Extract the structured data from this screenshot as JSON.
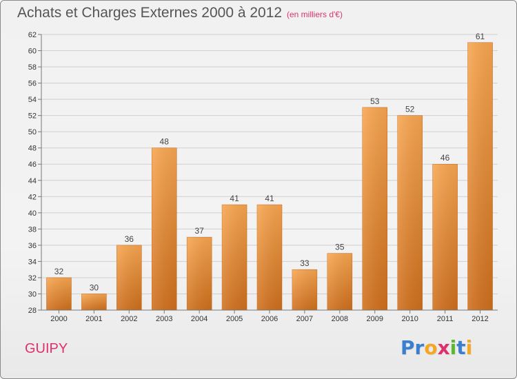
{
  "header": {
    "title": "Achats et Charges Externes 2000 à 2012",
    "subtitle": "(en milliers d'€)"
  },
  "footer": {
    "commune": "GUIPY",
    "logo_letters": [
      {
        "ch": "P",
        "color": "#3a7fd0"
      },
      {
        "ch": "r",
        "color": "#3a7fd0"
      },
      {
        "ch": "o",
        "color": "#f5a623"
      },
      {
        "ch": "x",
        "color": "#e0306c"
      },
      {
        "ch": "i",
        "color": "#5cb82e"
      },
      {
        "ch": "t",
        "color": "#3a7fd0"
      },
      {
        "ch": "i",
        "color": "#f5a623"
      }
    ]
  },
  "colors": {
    "bar_light": "#f8a650",
    "bar_dark": "#cf6f1c",
    "grid": "#cfcfcf",
    "axis": "#777777"
  },
  "chart_data": {
    "type": "bar",
    "title": "Achats et Charges Externes 2000 à 2012",
    "subtitle": "(en milliers d'€)",
    "categories": [
      "2000",
      "2001",
      "2002",
      "2003",
      "2004",
      "2005",
      "2006",
      "2007",
      "2008",
      "2009",
      "2010",
      "2011",
      "2012"
    ],
    "values": [
      32,
      30,
      36,
      48,
      37,
      41,
      41,
      33,
      35,
      53,
      52,
      46,
      61
    ],
    "ylim": [
      28,
      62
    ],
    "yticks": [
      28,
      30,
      32,
      34,
      36,
      38,
      40,
      42,
      44,
      46,
      48,
      50,
      52,
      54,
      56,
      58,
      60,
      62
    ],
    "grid": true,
    "legend": "none"
  }
}
